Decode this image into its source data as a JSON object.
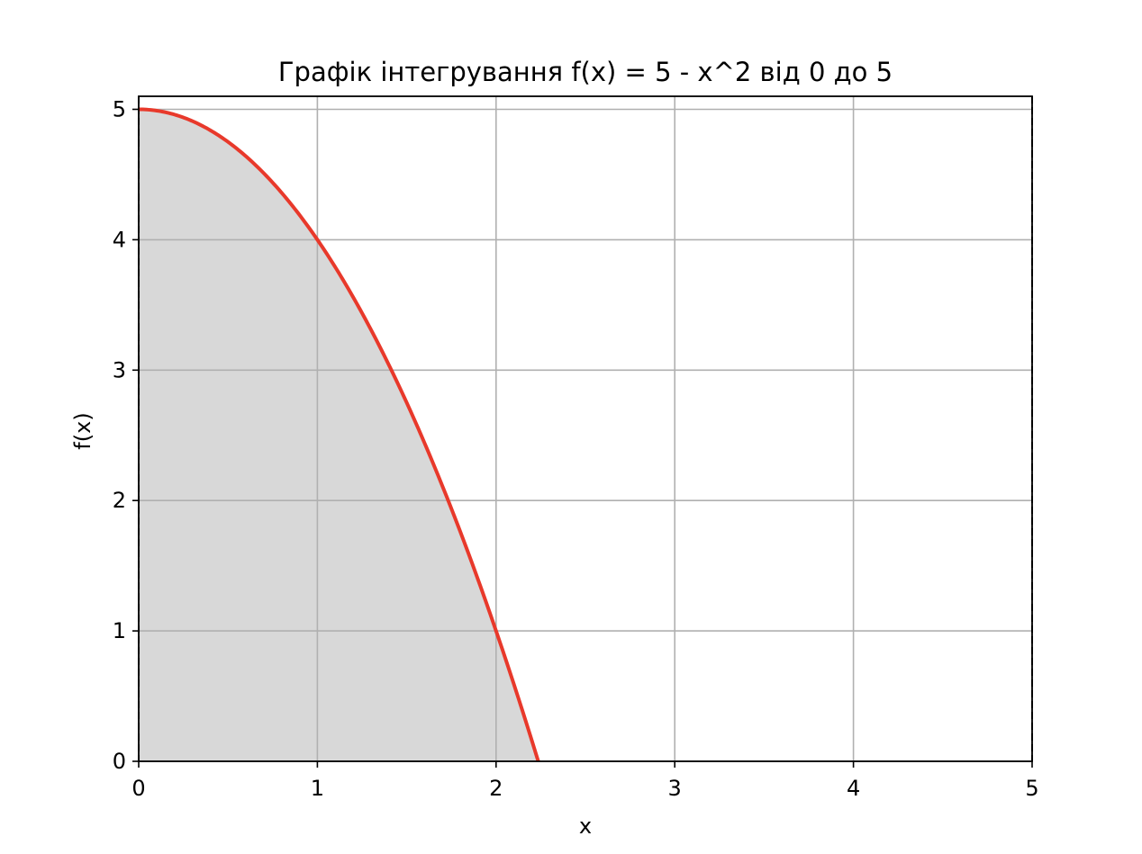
{
  "chart_data": {
    "type": "line",
    "title": "Графік інтегрування f(x) = 5 - x^2 від 0 до 5",
    "xlabel": "x",
    "ylabel": "f(x)",
    "xlim": [
      0,
      5
    ],
    "ylim": [
      0,
      5.1
    ],
    "xticks": [
      0,
      1,
      2,
      3,
      4,
      5
    ],
    "yticks": [
      0,
      1,
      2,
      3,
      4,
      5
    ],
    "grid": true,
    "function": "5 - x^2",
    "curve_domain": [
      0,
      2.236
    ],
    "fill_between": [
      0,
      5
    ],
    "bounds_dashed": [
      0,
      5
    ],
    "series": [
      {
        "x": [
          0,
          0.25,
          0.5,
          0.75,
          1,
          1.25,
          1.5,
          1.75,
          2,
          2.236
        ],
        "y": [
          5,
          4.9375,
          4.75,
          4.4375,
          4,
          3.4375,
          2.75,
          1.9375,
          1,
          0
        ]
      }
    ],
    "colors": {
      "line": "#e8392b",
      "fill": "#d8d8d8",
      "grid": "#b0b0b0",
      "axes": "#000000"
    }
  }
}
